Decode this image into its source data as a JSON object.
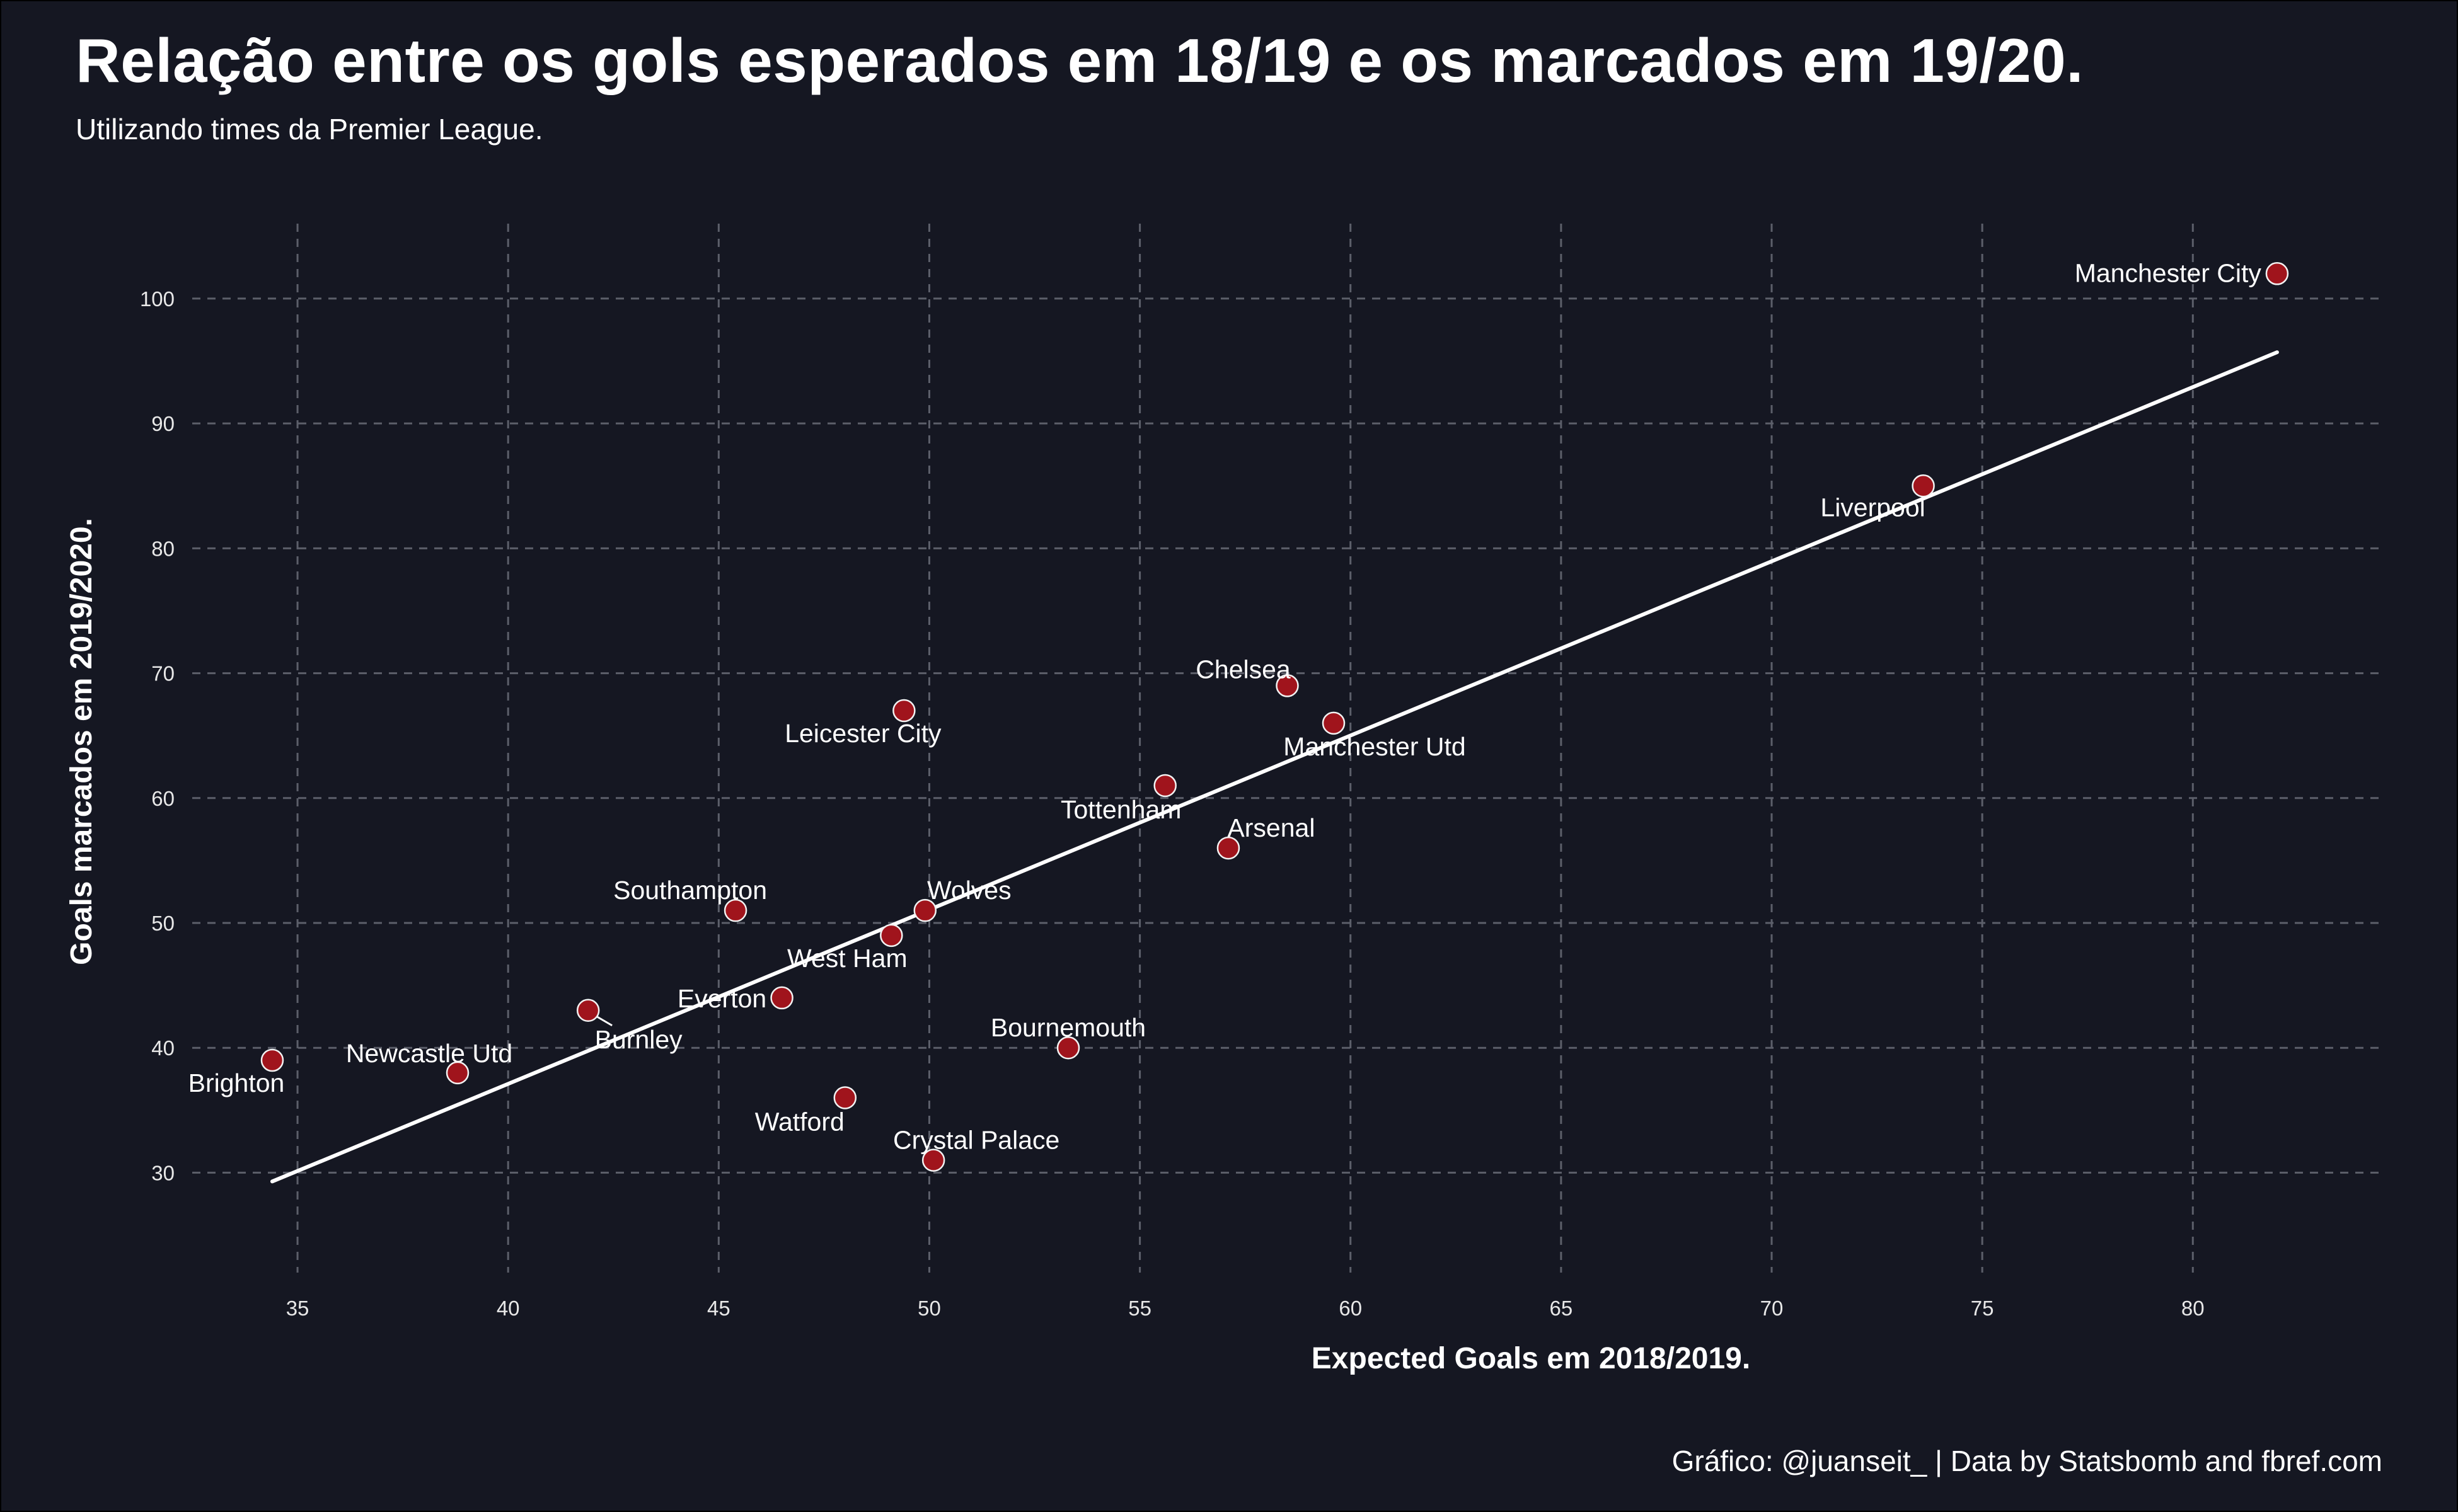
{
  "title": "Relação entre os gols esperados em 18/19 e os marcados em 19/20.",
  "subtitle": "Utilizando times da Premier League.",
  "caption": "Gráfico: @juanseit_ | Data by Statsbomb and fbref.com",
  "colors": {
    "background": "#151722",
    "grid": "#5c5f6a",
    "point_fill": "#a0141c",
    "point_stroke": "#f2f2f2",
    "trend_line": "#ffffff",
    "text": "#ffffff"
  },
  "chart_data": {
    "type": "scatter",
    "xlabel": "Expected Goals em 2018/2019.",
    "ylabel": "Goals marcados em 2019/2020.",
    "xlim": [
      32.5,
      84.5
    ],
    "ylim": [
      22,
      106
    ],
    "x_ticks": [
      35,
      40,
      45,
      50,
      55,
      60,
      65,
      70,
      75,
      80
    ],
    "y_ticks": [
      30,
      40,
      50,
      60,
      70,
      80,
      90,
      100
    ],
    "grid": true,
    "grid_style": "dashed",
    "trendline": {
      "x": [
        34.4,
        82.0
      ],
      "y": [
        29.3,
        95.7
      ]
    },
    "points": [
      {
        "team": "Manchester City",
        "x": 82.0,
        "y": 102
      },
      {
        "team": "Liverpool",
        "x": 73.6,
        "y": 85
      },
      {
        "team": "Chelsea",
        "x": 58.5,
        "y": 69
      },
      {
        "team": "Manchester Utd",
        "x": 59.6,
        "y": 66
      },
      {
        "team": "Leicester City",
        "x": 49.4,
        "y": 67
      },
      {
        "team": "Tottenham",
        "x": 55.6,
        "y": 61
      },
      {
        "team": "Arsenal",
        "x": 57.1,
        "y": 56
      },
      {
        "team": "Southampton",
        "x": 45.4,
        "y": 51
      },
      {
        "team": "Wolves",
        "x": 49.9,
        "y": 51
      },
      {
        "team": "West Ham",
        "x": 49.1,
        "y": 49
      },
      {
        "team": "Everton",
        "x": 46.5,
        "y": 44
      },
      {
        "team": "Burnley",
        "x": 41.9,
        "y": 43
      },
      {
        "team": "Bournemouth",
        "x": 53.3,
        "y": 40
      },
      {
        "team": "Brighton",
        "x": 34.4,
        "y": 39
      },
      {
        "team": "Newcastle Utd",
        "x": 38.8,
        "y": 38
      },
      {
        "team": "Watford",
        "x": 48.0,
        "y": 36
      },
      {
        "team": "Crystal Palace",
        "x": 50.1,
        "y": 31
      }
    ]
  }
}
